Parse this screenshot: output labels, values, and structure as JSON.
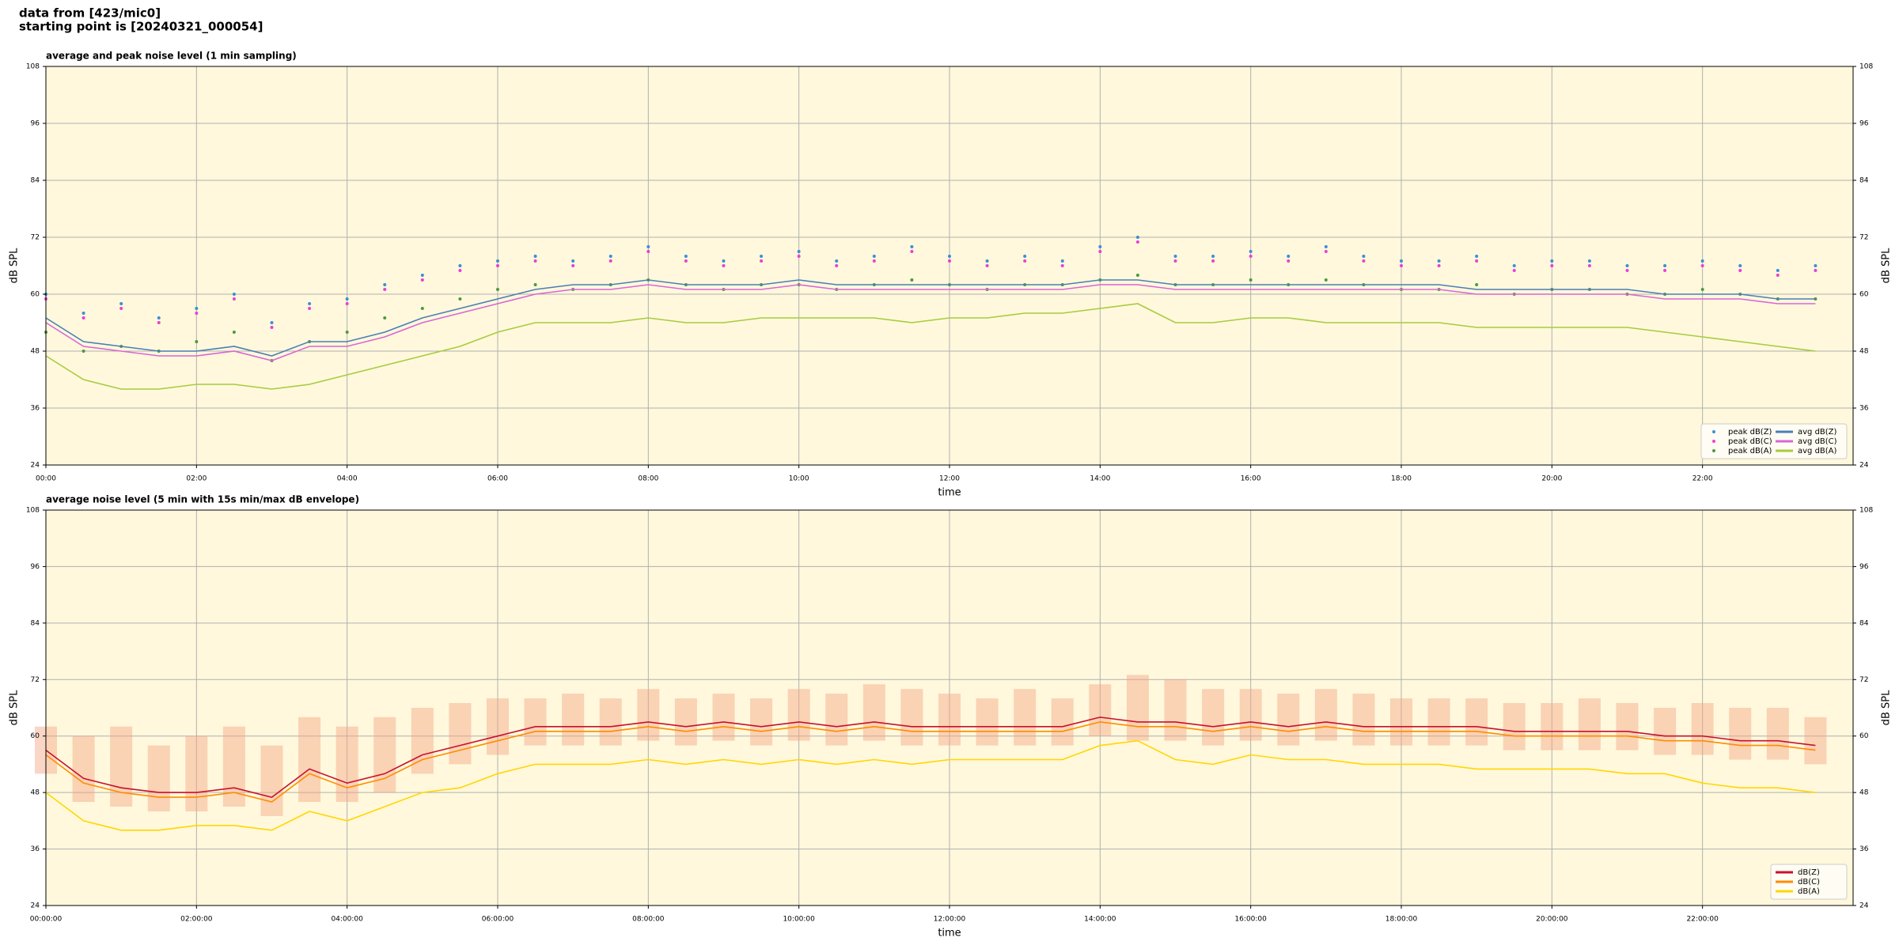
{
  "header": {
    "source": "data from [423/mic0]",
    "start": "starting point is [20240321_000054]"
  },
  "chart_data": [
    {
      "type": "line",
      "title": "average and peak noise level (1 min sampling)",
      "xlabel": "time",
      "ylabel": "dB SPL",
      "background": "#fff8dc",
      "grid": true,
      "legend": "lower right",
      "legend_columns": 2,
      "xlim": [
        0,
        24
      ],
      "ylim": [
        24,
        108
      ],
      "yticks": [
        24,
        36,
        48,
        60,
        72,
        84,
        96,
        108
      ],
      "xticks": [
        {
          "value": 0,
          "label": "00:00"
        },
        {
          "value": 2,
          "label": "02:00"
        },
        {
          "value": 4,
          "label": "04:00"
        },
        {
          "value": 6,
          "label": "06:00"
        },
        {
          "value": 8,
          "label": "08:00"
        },
        {
          "value": 10,
          "label": "10:00"
        },
        {
          "value": 12,
          "label": "12:00"
        },
        {
          "value": 14,
          "label": "14:00"
        },
        {
          "value": 16,
          "label": "16:00"
        },
        {
          "value": 18,
          "label": "18:00"
        },
        {
          "value": 20,
          "label": "20:00"
        },
        {
          "value": 22,
          "label": "22:00"
        }
      ],
      "x": [
        0,
        0.5,
        1,
        1.5,
        2,
        2.5,
        3,
        3.5,
        4,
        4.5,
        5,
        5.5,
        6,
        6.5,
        7,
        7.5,
        8,
        8.5,
        9,
        9.5,
        10,
        10.5,
        11,
        11.5,
        12,
        12.5,
        13,
        13.5,
        14,
        14.5,
        15,
        15.5,
        16,
        16.5,
        17,
        17.5,
        18,
        18.5,
        19,
        19.5,
        20,
        20.5,
        21,
        21.5,
        22,
        22.5,
        23,
        23.5
      ],
      "series": [
        {
          "name": "peak dB(Z)",
          "color": "#3a8fd8",
          "marker": "dot",
          "values": [
            60,
            56,
            58,
            55,
            57,
            60,
            54,
            58,
            59,
            62,
            64,
            66,
            67,
            68,
            67,
            68,
            70,
            68,
            67,
            68,
            69,
            67,
            68,
            70,
            68,
            67,
            68,
            67,
            70,
            72,
            68,
            68,
            69,
            68,
            70,
            68,
            67,
            67,
            68,
            66,
            67,
            67,
            66,
            66,
            67,
            66,
            65,
            66
          ]
        },
        {
          "name": "peak dB(C)",
          "color": "#e83fd8",
          "marker": "dot",
          "values": [
            59,
            55,
            57,
            54,
            56,
            59,
            53,
            57,
            58,
            61,
            63,
            65,
            66,
            67,
            66,
            67,
            69,
            67,
            66,
            67,
            68,
            66,
            67,
            69,
            67,
            66,
            67,
            66,
            69,
            71,
            67,
            67,
            68,
            67,
            69,
            67,
            66,
            66,
            67,
            65,
            66,
            66,
            65,
            65,
            66,
            65,
            64,
            65
          ]
        },
        {
          "name": "peak dB(A)",
          "color": "#4c9a3c",
          "marker": "dot",
          "values": [
            52,
            48,
            49,
            48,
            50,
            52,
            46,
            50,
            52,
            55,
            57,
            59,
            61,
            62,
            61,
            62,
            63,
            62,
            61,
            62,
            62,
            61,
            62,
            63,
            62,
            61,
            62,
            62,
            63,
            64,
            62,
            62,
            63,
            62,
            63,
            62,
            61,
            61,
            62,
            60,
            61,
            61,
            60,
            60,
            61,
            60,
            59,
            59
          ]
        },
        {
          "name": "avg dB(Z)",
          "color": "#4a7fb5",
          "marker": "line",
          "values": [
            55,
            50,
            49,
            48,
            48,
            49,
            47,
            50,
            50,
            52,
            55,
            57,
            59,
            61,
            62,
            62,
            63,
            62,
            62,
            62,
            63,
            62,
            62,
            62,
            62,
            62,
            62,
            62,
            63,
            63,
            62,
            62,
            62,
            62,
            62,
            62,
            62,
            62,
            61,
            61,
            61,
            61,
            61,
            60,
            60,
            60,
            59,
            59
          ]
        },
        {
          "name": "avg dB(C)",
          "color": "#d966d6",
          "marker": "line",
          "values": [
            54,
            49,
            48,
            47,
            47,
            48,
            46,
            49,
            49,
            51,
            54,
            56,
            58,
            60,
            61,
            61,
            62,
            61,
            61,
            61,
            62,
            61,
            61,
            61,
            61,
            61,
            61,
            61,
            62,
            62,
            61,
            61,
            61,
            61,
            61,
            61,
            61,
            61,
            60,
            60,
            60,
            60,
            60,
            59,
            59,
            59,
            58,
            58
          ]
        },
        {
          "name": "avg dB(A)",
          "color": "#a6cc3f",
          "marker": "line",
          "values": [
            47,
            42,
            40,
            40,
            41,
            41,
            40,
            41,
            43,
            45,
            47,
            49,
            52,
            54,
            54,
            54,
            55,
            54,
            54,
            55,
            55,
            55,
            55,
            54,
            55,
            55,
            56,
            56,
            57,
            58,
            54,
            54,
            55,
            55,
            54,
            54,
            54,
            54,
            53,
            53,
            53,
            53,
            53,
            52,
            51,
            50,
            49,
            48
          ]
        }
      ]
    },
    {
      "type": "line",
      "title": "average noise level (5 min with 15s min/max dB envelope)",
      "xlabel": "time",
      "ylabel": "dB SPL",
      "background": "#fff8dc",
      "grid": true,
      "legend": "lower right",
      "legend_columns": 1,
      "xlim": [
        0,
        24
      ],
      "ylim": [
        24,
        108
      ],
      "yticks": [
        24,
        36,
        48,
        60,
        72,
        84,
        96,
        108
      ],
      "xticks": [
        {
          "value": 0,
          "label": "00:00:00"
        },
        {
          "value": 2,
          "label": "02:00:00"
        },
        {
          "value": 4,
          "label": "04:00:00"
        },
        {
          "value": 6,
          "label": "06:00:00"
        },
        {
          "value": 8,
          "label": "08:00:00"
        },
        {
          "value": 10,
          "label": "10:00:00"
        },
        {
          "value": 12,
          "label": "12:00:00"
        },
        {
          "value": 14,
          "label": "14:00:00"
        },
        {
          "value": 16,
          "label": "16:00:00"
        },
        {
          "value": 18,
          "label": "18:00:00"
        },
        {
          "value": 20,
          "label": "20:00:00"
        },
        {
          "value": 22,
          "label": "22:00:00"
        }
      ],
      "x": [
        0,
        0.5,
        1,
        1.5,
        2,
        2.5,
        3,
        3.5,
        4,
        4.5,
        5,
        5.5,
        6,
        6.5,
        7,
        7.5,
        8,
        8.5,
        9,
        9.5,
        10,
        10.5,
        11,
        11.5,
        12,
        12.5,
        13,
        13.5,
        14,
        14.5,
        15,
        15.5,
        16,
        16.5,
        17,
        17.5,
        18,
        18.5,
        19,
        19.5,
        20,
        20.5,
        21,
        21.5,
        22,
        22.5,
        23,
        23.5
      ],
      "envelope": {
        "color": "#f4a582",
        "low": [
          52,
          46,
          45,
          44,
          44,
          45,
          43,
          46,
          46,
          48,
          52,
          54,
          56,
          58,
          58,
          58,
          59,
          58,
          59,
          58,
          59,
          58,
          59,
          58,
          58,
          58,
          58,
          58,
          60,
          59,
          59,
          58,
          59,
          58,
          59,
          58,
          58,
          58,
          58,
          57,
          57,
          57,
          57,
          56,
          56,
          55,
          55,
          54
        ],
        "high": [
          62,
          60,
          62,
          58,
          60,
          62,
          58,
          64,
          62,
          64,
          66,
          67,
          68,
          68,
          69,
          68,
          70,
          68,
          69,
          68,
          70,
          69,
          71,
          70,
          69,
          68,
          70,
          68,
          71,
          73,
          72,
          70,
          70,
          69,
          70,
          69,
          68,
          68,
          68,
          67,
          67,
          68,
          67,
          66,
          67,
          66,
          66,
          64
        ]
      },
      "series": [
        {
          "name": "dB(Z)",
          "color": "#c8102e",
          "marker": "line",
          "values": [
            57,
            51,
            49,
            48,
            48,
            49,
            47,
            53,
            50,
            52,
            56,
            58,
            60,
            62,
            62,
            62,
            63,
            62,
            63,
            62,
            63,
            62,
            63,
            62,
            62,
            62,
            62,
            62,
            64,
            63,
            63,
            62,
            63,
            62,
            63,
            62,
            62,
            62,
            62,
            61,
            61,
            61,
            61,
            60,
            60,
            59,
            59,
            58
          ]
        },
        {
          "name": "dB(C)",
          "color": "#ff8c00",
          "marker": "line",
          "values": [
            56,
            50,
            48,
            47,
            47,
            48,
            46,
            52,
            49,
            51,
            55,
            57,
            59,
            61,
            61,
            61,
            62,
            61,
            62,
            61,
            62,
            61,
            62,
            61,
            61,
            61,
            61,
            61,
            63,
            62,
            62,
            61,
            62,
            61,
            62,
            61,
            61,
            61,
            61,
            60,
            60,
            60,
            60,
            59,
            59,
            58,
            58,
            57
          ]
        },
        {
          "name": "dB(A)",
          "color": "#ffd700",
          "marker": "line",
          "values": [
            48,
            42,
            40,
            40,
            41,
            41,
            40,
            44,
            42,
            45,
            48,
            49,
            52,
            54,
            54,
            54,
            55,
            54,
            55,
            54,
            55,
            54,
            55,
            54,
            55,
            55,
            55,
            55,
            58,
            59,
            55,
            54,
            56,
            55,
            55,
            54,
            54,
            54,
            53,
            53,
            53,
            53,
            52,
            52,
            50,
            49,
            49,
            48
          ]
        }
      ]
    }
  ]
}
